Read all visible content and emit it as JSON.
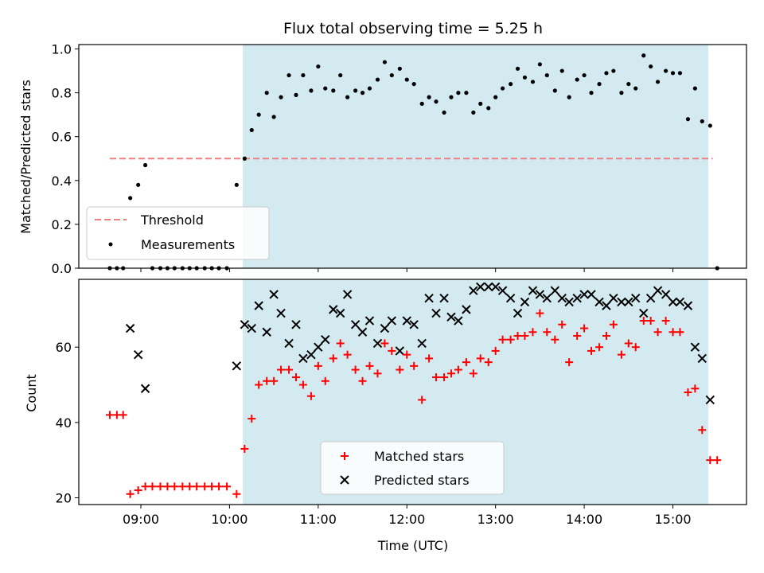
{
  "chart_data": [
    {
      "type": "scatter",
      "title": "Flux total observing time = 5.25 h",
      "xlabel": "",
      "ylabel": "Matched/Predicted stars",
      "ylim": [
        0,
        1.02
      ],
      "yticks": [
        "0.0",
        "0.2",
        "0.4",
        "0.6",
        "0.8",
        "1.0"
      ],
      "xlim": [
        8.3,
        15.83
      ],
      "observing_window": [
        10.15,
        15.4
      ],
      "shade_color": "#d3eaf0",
      "threshold": {
        "name": "Threshold",
        "value": 0.5,
        "x_range": [
          8.65,
          15.45
        ],
        "color": "#f08080"
      },
      "series": [
        {
          "name": "Measurements",
          "color": "#000000",
          "x": [
            8.65,
            8.73,
            8.8,
            8.88,
            8.97,
            9.05,
            9.13,
            9.22,
            9.3,
            9.38,
            9.47,
            9.55,
            9.63,
            9.72,
            9.8,
            9.88,
            9.97,
            10.08,
            10.17,
            10.25,
            10.33,
            10.42,
            10.5,
            10.58,
            10.67,
            10.75,
            10.83,
            10.92,
            11.0,
            11.08,
            11.17,
            11.25,
            11.33,
            11.42,
            11.5,
            11.58,
            11.67,
            11.75,
            11.83,
            11.92,
            12.0,
            12.08,
            12.17,
            12.25,
            12.33,
            12.42,
            12.5,
            12.58,
            12.67,
            12.75,
            12.83,
            12.92,
            13.0,
            13.08,
            13.17,
            13.25,
            13.33,
            13.42,
            13.5,
            13.58,
            13.67,
            13.75,
            13.83,
            13.92,
            14.0,
            14.08,
            14.17,
            14.25,
            14.33,
            14.42,
            14.5,
            14.58,
            14.67,
            14.75,
            14.83,
            14.92,
            15.0,
            15.08,
            15.17,
            15.25,
            15.33,
            15.42,
            15.5
          ],
          "y": [
            0,
            0,
            0,
            0.32,
            0.38,
            0.47,
            0,
            0,
            0,
            0,
            0,
            0,
            0,
            0,
            0,
            0,
            0,
            0.38,
            0.5,
            0.63,
            0.7,
            0.8,
            0.69,
            0.78,
            0.88,
            0.79,
            0.88,
            0.81,
            0.92,
            0.82,
            0.81,
            0.88,
            0.78,
            0.81,
            0.8,
            0.82,
            0.86,
            0.94,
            0.88,
            0.91,
            0.86,
            0.84,
            0.75,
            0.78,
            0.76,
            0.71,
            0.78,
            0.8,
            0.8,
            0.71,
            0.75,
            0.73,
            0.78,
            0.82,
            0.84,
            0.91,
            0.87,
            0.85,
            0.93,
            0.88,
            0.81,
            0.9,
            0.78,
            0.86,
            0.88,
            0.8,
            0.84,
            0.89,
            0.9,
            0.8,
            0.84,
            0.82,
            0.97,
            0.92,
            0.85,
            0.9,
            0.89,
            0.89,
            0.68,
            0.82,
            0.67,
            0.65,
            0
          ]
        }
      ],
      "legend": [
        "Threshold",
        "Measurements"
      ],
      "legend_position": "lower-left",
      "grid": false
    },
    {
      "type": "scatter",
      "xlabel": "Time (UTC)",
      "ylabel": "Count",
      "ylim": [
        18.2,
        78
      ],
      "yticks": [
        "20",
        "40",
        "60"
      ],
      "xlim": [
        8.3,
        15.83
      ],
      "xticks": [
        "09:00",
        "10:00",
        "11:00",
        "12:00",
        "13:00",
        "14:00",
        "15:00"
      ],
      "observing_window": [
        10.15,
        15.4
      ],
      "shade_color": "#d3eaf0",
      "series": [
        {
          "name": "Matched stars",
          "marker": "plus",
          "color": "#ff0000",
          "x": [
            8.65,
            8.73,
            8.8,
            8.88,
            8.97,
            9.05,
            9.13,
            9.22,
            9.3,
            9.38,
            9.47,
            9.55,
            9.63,
            9.72,
            9.8,
            9.88,
            9.97,
            10.08,
            10.17,
            10.25,
            10.33,
            10.42,
            10.5,
            10.58,
            10.67,
            10.75,
            10.83,
            10.92,
            11.0,
            11.08,
            11.17,
            11.25,
            11.33,
            11.42,
            11.5,
            11.58,
            11.67,
            11.75,
            11.83,
            11.92,
            12.0,
            12.08,
            12.17,
            12.25,
            12.33,
            12.42,
            12.5,
            12.58,
            12.67,
            12.75,
            12.83,
            12.92,
            13.0,
            13.08,
            13.17,
            13.25,
            13.33,
            13.42,
            13.5,
            13.58,
            13.67,
            13.75,
            13.83,
            13.92,
            14.0,
            14.08,
            14.17,
            14.25,
            14.33,
            14.42,
            14.5,
            14.58,
            14.67,
            14.75,
            14.83,
            14.92,
            15.0,
            15.08,
            15.17,
            15.25,
            15.33,
            15.42,
            15.5
          ],
          "y": [
            42,
            42,
            42,
            21,
            22,
            23,
            23,
            23,
            23,
            23,
            23,
            23,
            23,
            23,
            23,
            23,
            23,
            21,
            33,
            41,
            50,
            51,
            51,
            54,
            54,
            52,
            50,
            47,
            55,
            51,
            57,
            61,
            58,
            54,
            51,
            55,
            53,
            61,
            59,
            54,
            58,
            55,
            46,
            57,
            52,
            52,
            53,
            54,
            56,
            53,
            57,
            56,
            59,
            62,
            62,
            63,
            63,
            64,
            69,
            64,
            62,
            66,
            56,
            63,
            65,
            59,
            60,
            63,
            66,
            58,
            61,
            60,
            67,
            67,
            64,
            67,
            64,
            64,
            48,
            49,
            38,
            30,
            30
          ]
        },
        {
          "name": "Predicted stars",
          "marker": "x",
          "color": "#000000",
          "x": [
            8.88,
            8.97,
            9.05,
            10.08,
            10.17,
            10.25,
            10.33,
            10.42,
            10.5,
            10.58,
            10.67,
            10.75,
            10.83,
            10.92,
            11.0,
            11.08,
            11.17,
            11.25,
            11.33,
            11.42,
            11.5,
            11.58,
            11.67,
            11.75,
            11.83,
            11.92,
            12.0,
            12.08,
            12.17,
            12.25,
            12.33,
            12.42,
            12.5,
            12.58,
            12.67,
            12.75,
            12.83,
            12.92,
            13.0,
            13.08,
            13.17,
            13.25,
            13.33,
            13.42,
            13.5,
            13.58,
            13.67,
            13.75,
            13.83,
            13.92,
            14.0,
            14.08,
            14.17,
            14.25,
            14.33,
            14.42,
            14.5,
            14.58,
            14.67,
            14.75,
            14.83,
            14.92,
            15.0,
            15.08,
            15.17,
            15.25,
            15.33,
            15.42
          ],
          "y": [
            65,
            58,
            49,
            55,
            66,
            65,
            71,
            64,
            74,
            69,
            61,
            66,
            57,
            58,
            60,
            62,
            70,
            69,
            74,
            66,
            64,
            67,
            61,
            65,
            67,
            59,
            67,
            66,
            61,
            73,
            69,
            73,
            68,
            67,
            70,
            75,
            76,
            76,
            76,
            75,
            73,
            69,
            72,
            75,
            74,
            73,
            75,
            73,
            72,
            73,
            74,
            74,
            72,
            71,
            73,
            72,
            72,
            73,
            69,
            73,
            75,
            74,
            72,
            72,
            71,
            60,
            57,
            46
          ]
        }
      ],
      "legend": [
        "Matched stars",
        "Predicted stars"
      ],
      "legend_position": "lower-center",
      "grid": false
    }
  ]
}
